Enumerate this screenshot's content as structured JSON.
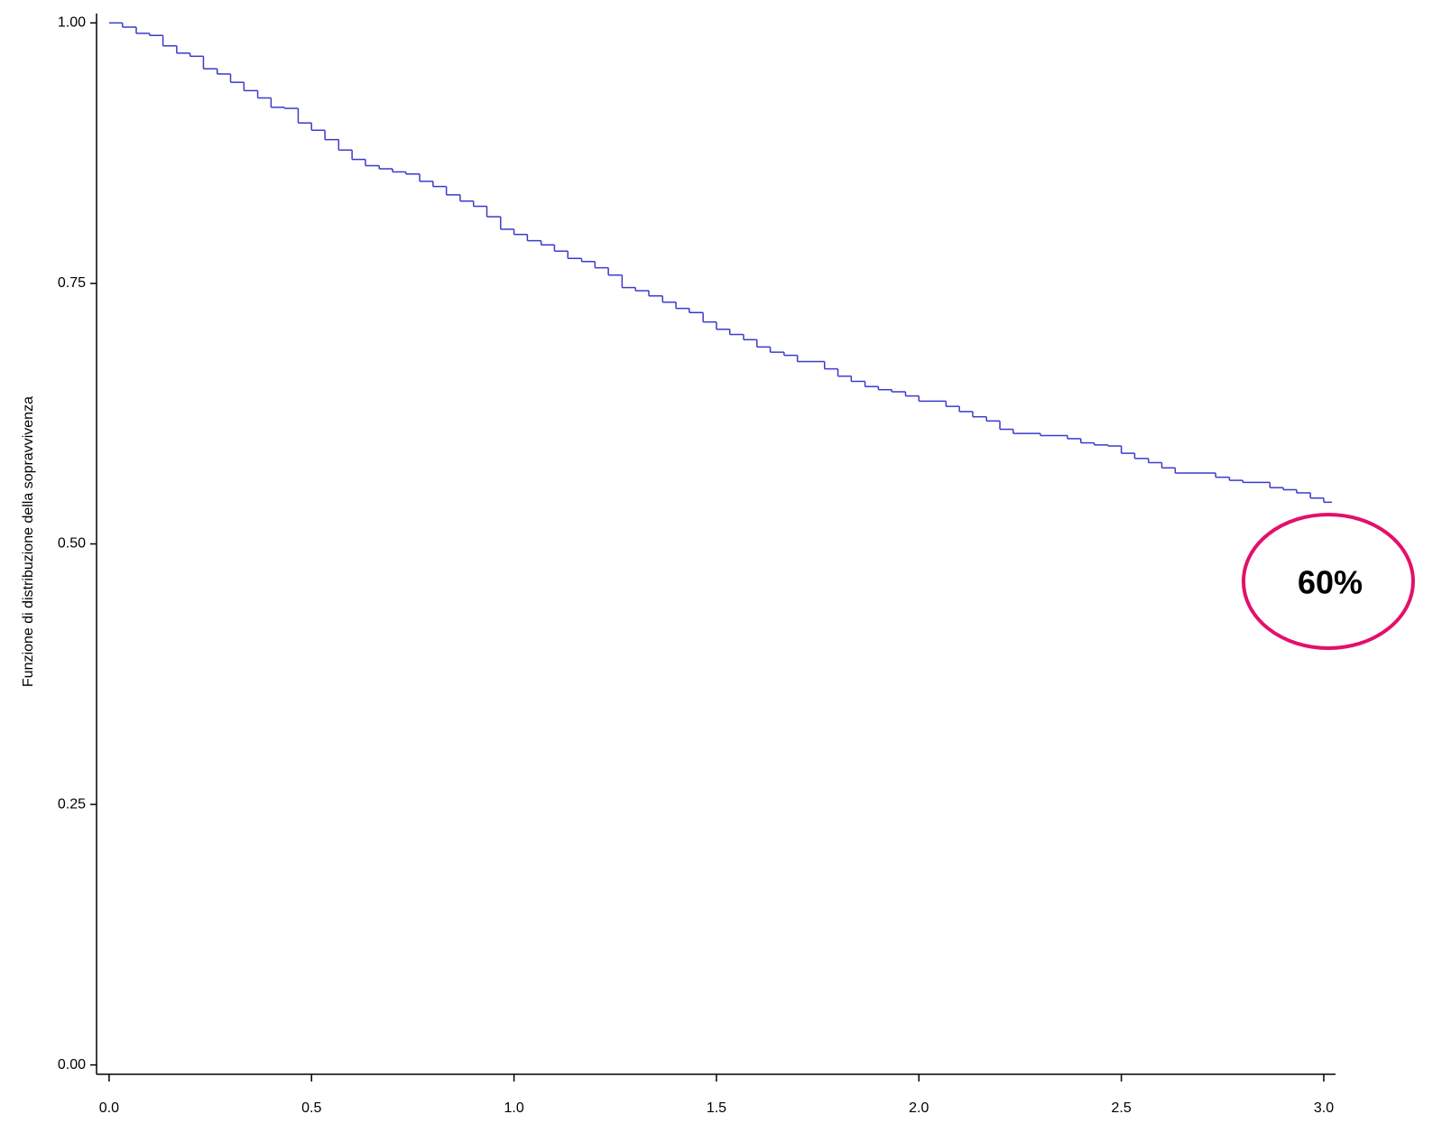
{
  "chart_data": {
    "type": "step",
    "y_label": "Funzione di distribuzione della sopravvivenza",
    "annotation": "60%",
    "annotation_color": "#e3106a",
    "color": "#3a3acc",
    "x": [
      0,
      0.033,
      0.067,
      0.1,
      0.133,
      0.167,
      0.2,
      0.233,
      0.267,
      0.3,
      0.333,
      0.367,
      0.4,
      0.433,
      0.467,
      0.5,
      0.533,
      0.567,
      0.6,
      0.633,
      0.667,
      0.7,
      0.733,
      0.767,
      0.8,
      0.833,
      0.867,
      0.9,
      0.933,
      0.967,
      1.0,
      1.033,
      1.067,
      1.1,
      1.133,
      1.167,
      1.2,
      1.233,
      1.267,
      1.3,
      1.333,
      1.367,
      1.4,
      1.433,
      1.467,
      1.5,
      1.533,
      1.567,
      1.6,
      1.633,
      1.667,
      1.7,
      1.767,
      1.8,
      1.833,
      1.867,
      1.9,
      1.933,
      1.967,
      2.0,
      2.067,
      2.1,
      2.133,
      2.167,
      2.2,
      2.233,
      2.3,
      2.367,
      2.4,
      2.433,
      2.467,
      2.5,
      2.533,
      2.567,
      2.6,
      2.633,
      2.733,
      2.767,
      2.8,
      2.867,
      2.9,
      2.933,
      2.967,
      3.0,
      3.02
    ],
    "values": [
      1.0,
      0.996,
      0.99,
      0.988,
      0.978,
      0.971,
      0.968,
      0.956,
      0.951,
      0.943,
      0.935,
      0.928,
      0.919,
      0.918,
      0.904,
      0.897,
      0.888,
      0.878,
      0.869,
      0.863,
      0.86,
      0.857,
      0.855,
      0.848,
      0.843,
      0.835,
      0.829,
      0.824,
      0.814,
      0.802,
      0.797,
      0.791,
      0.787,
      0.781,
      0.774,
      0.771,
      0.765,
      0.758,
      0.746,
      0.743,
      0.738,
      0.732,
      0.726,
      0.722,
      0.713,
      0.706,
      0.701,
      0.696,
      0.689,
      0.684,
      0.681,
      0.675,
      0.668,
      0.661,
      0.656,
      0.651,
      0.648,
      0.646,
      0.642,
      0.637,
      0.632,
      0.627,
      0.622,
      0.618,
      0.61,
      0.606,
      0.604,
      0.601,
      0.597,
      0.595,
      0.594,
      0.587,
      0.582,
      0.578,
      0.573,
      0.568,
      0.564,
      0.561,
      0.559,
      0.554,
      0.552,
      0.549,
      0.544,
      0.54,
      0.54
    ],
    "xlim": [
      -0.031,
      3.029
    ],
    "ylim": [
      -0.009,
      1.009
    ],
    "xticks": [
      {
        "value": 0,
        "label": "0.0"
      },
      0.5,
      {
        "value": 1,
        "label": "1.0"
      },
      1.5,
      {
        "value": 2,
        "label": "2.0"
      },
      2.5,
      {
        "value": 3,
        "label": "3.0"
      }
    ],
    "yticks": [
      {
        "value": 0,
        "label": "0.00"
      },
      {
        "value": 0.25,
        "label": "0.25"
      },
      {
        "value": 0.5,
        "label": "0.50"
      },
      {
        "value": 0.75,
        "label": "0.75"
      },
      {
        "value": 1,
        "label": "1.00"
      }
    ],
    "grid": false
  }
}
